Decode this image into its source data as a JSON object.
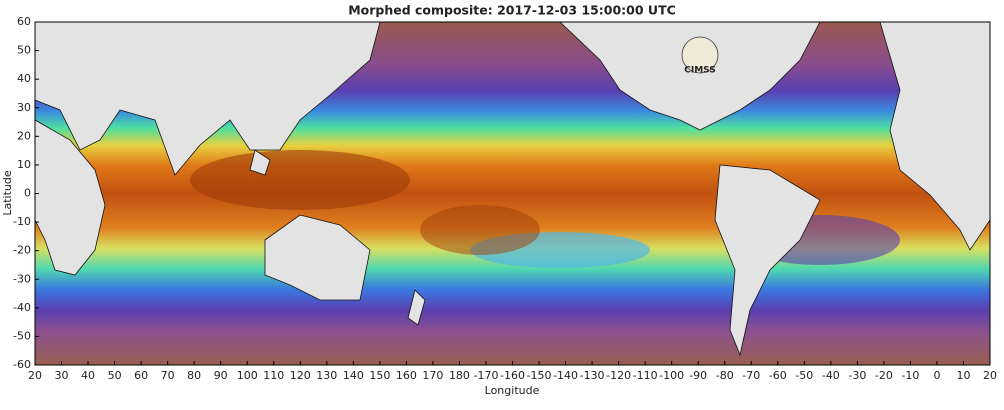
{
  "chart_data": {
    "type": "map",
    "title": "Morphed composite: 2017-12-03 15:00:00 UTC",
    "x_label": "Longitude",
    "y_label": "Latitude",
    "logo": "CIMSS",
    "xlim": [
      20,
      380
    ],
    "ylim": [
      -60,
      60
    ],
    "xticks": [
      20,
      30,
      40,
      50,
      60,
      70,
      80,
      90,
      100,
      110,
      120,
      130,
      140,
      150,
      160,
      170,
      180,
      {
        "value": 190,
        "label": "-170"
      },
      {
        "value": 200,
        "label": "-160"
      },
      {
        "value": 210,
        "label": "-150"
      },
      {
        "value": 220,
        "label": "-140"
      },
      {
        "value": 230,
        "label": "-130"
      },
      {
        "value": 240,
        "label": "-120"
      },
      {
        "value": 250,
        "label": "-110"
      },
      {
        "value": 260,
        "label": "-100"
      },
      {
        "value": 270,
        "label": "-90"
      },
      {
        "value": 280,
        "label": "-80"
      },
      {
        "value": 290,
        "label": "-70"
      },
      {
        "value": 300,
        "label": "-60"
      },
      {
        "value": 310,
        "label": "-50"
      },
      {
        "value": 320,
        "label": "-40"
      },
      {
        "value": 330,
        "label": "-30"
      },
      {
        "value": 340,
        "label": "-20"
      },
      {
        "value": 350,
        "label": "-10"
      },
      {
        "value": 360,
        "label": "0"
      },
      {
        "value": 370,
        "label": "10"
      },
      {
        "value": 380,
        "label": "20"
      }
    ],
    "yticks": [
      -60,
      -50,
      -40,
      -30,
      -20,
      -10,
      0,
      10,
      20,
      30,
      40,
      50,
      60
    ]
  }
}
